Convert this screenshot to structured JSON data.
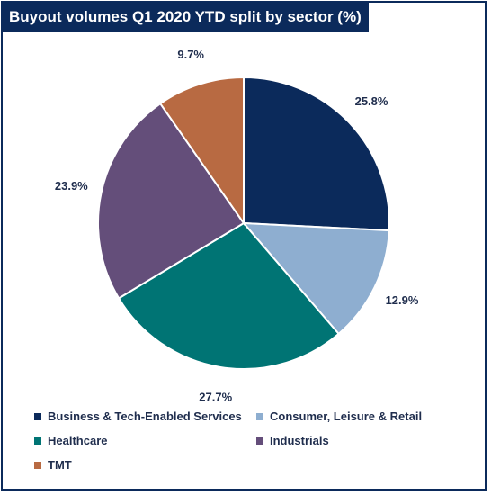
{
  "chart_data": {
    "type": "pie",
    "title": "Buyout volumes Q1 2020 YTD split by sector (%)",
    "slices": [
      {
        "label": "Business & Tech-Enabled Services",
        "value": 25.8,
        "display": "25.8%",
        "color": "#0b2a5b"
      },
      {
        "label": "Consumer, Leisure & Retail",
        "value": 12.9,
        "display": "12.9%",
        "color": "#8eaed0"
      },
      {
        "label": "Healthcare",
        "value": 27.7,
        "display": "27.7%",
        "color": "#007474"
      },
      {
        "label": "Industrials",
        "value": 23.9,
        "display": "23.9%",
        "color": "#644e7a"
      },
      {
        "label": "TMT",
        "value": 9.7,
        "display": "9.7%",
        "color": "#b86a42"
      }
    ],
    "legend_position": "bottom"
  }
}
